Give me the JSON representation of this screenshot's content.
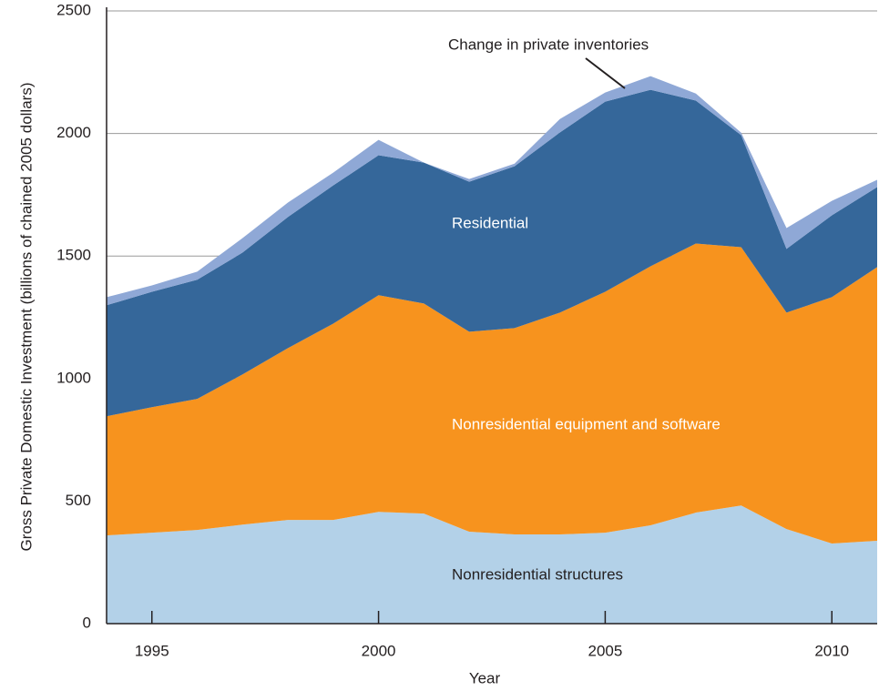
{
  "chart_data": {
    "type": "stacked-area",
    "x_label": "Year",
    "y_label": "Gross Private Domestic Investment (billions of chained 2005 dollars)",
    "x": [
      1994,
      1995,
      1996,
      1997,
      1998,
      1999,
      2000,
      2001,
      2002,
      2003,
      2004,
      2005,
      2006,
      2007,
      2008,
      2009,
      2010,
      2011
    ],
    "series": [
      {
        "name": "Nonresidential structures",
        "color": "#b3d1e8",
        "values": [
          360,
          371,
          382,
          404,
          423,
          423,
          456,
          449,
          375,
          364,
          364,
          371,
          401,
          453,
          482,
          386,
          327,
          338
        ]
      },
      {
        "name": "Nonresidential equipment and software",
        "color": "#f7931e",
        "values": [
          486,
          512,
          535,
          613,
          701,
          801,
          884,
          857,
          816,
          842,
          905,
          983,
          1057,
          1098,
          1054,
          883,
          1005,
          1117
        ]
      },
      {
        "name": "Residential",
        "color": "#35679a",
        "values": [
          453,
          471,
          486,
          497,
          535,
          564,
          571,
          575,
          612,
          660,
          735,
          776,
          720,
          583,
          457,
          260,
          334,
          326
        ]
      },
      {
        "name": "Change in private inventories",
        "color": "#8fa8d6",
        "values": [
          33,
          26,
          33,
          59,
          59,
          52,
          63,
          0,
          11,
          11,
          55,
          37,
          56,
          29,
          10,
          85,
          59,
          30
        ]
      }
    ],
    "xlim": [
      1994,
      2011
    ],
    "xticks": [
      1995,
      2000,
      2005,
      2010
    ],
    "ylim": [
      0,
      2500
    ],
    "yticks": [
      0,
      500,
      1000,
      1500,
      2000,
      2500
    ],
    "grid": true
  }
}
